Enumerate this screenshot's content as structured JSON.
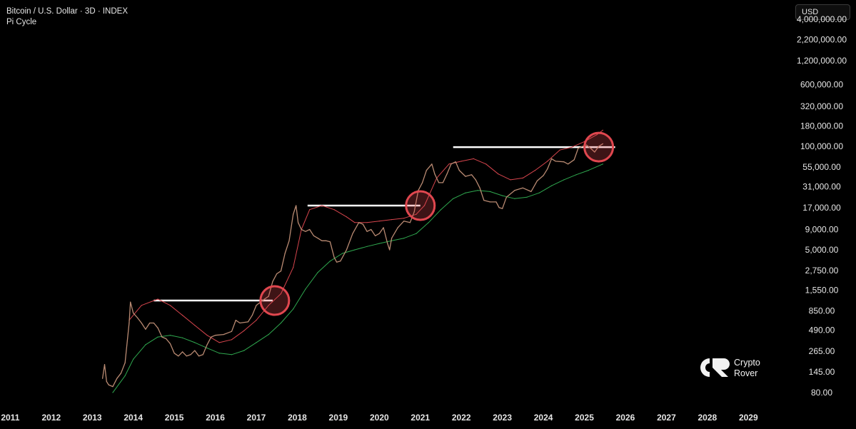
{
  "header": {
    "title": "Bitcoin / U.S. Dollar · 3D · INDEX",
    "indicator": "Pi Cycle"
  },
  "currency_button": "USD",
  "watermark": {
    "line1": "Crypto",
    "line2": "Rover"
  },
  "colors": {
    "background": "#000000",
    "price": "#b98a72",
    "upper_band": "#d6454d",
    "lower_band": "#2fa84f",
    "highlight_circle": "#e0474f",
    "level_line": "#ffffff"
  },
  "chart_data": {
    "type": "line",
    "title": "Bitcoin / U.S. Dollar · 3D · INDEX",
    "indicator": "Pi Cycle",
    "y_scale": "log",
    "y_ticks": [
      80,
      145,
      265,
      490,
      850,
      1550,
      2750,
      5000,
      9000,
      17000,
      31000,
      55000,
      100000,
      180000,
      320000,
      600000,
      1200000,
      2200000,
      4000000
    ],
    "y_tick_labels": [
      "80.00",
      "145.00",
      "265.00",
      "490.00",
      "850.00",
      "1,550.00",
      "2,750.00",
      "5,000.00",
      "9,000.00",
      "17,000.00",
      "31,000.00",
      "55,000.00",
      "100,000.00",
      "180,000.00",
      "320,000.00",
      "600,000.00",
      "1,200,000.00",
      "2,200,000.00",
      "4,000,000.00"
    ],
    "x_ticks": [
      "2011",
      "2012",
      "2013",
      "2014",
      "2015",
      "2016",
      "2017",
      "2018",
      "2019",
      "2020",
      "2021",
      "2022",
      "2023",
      "2024",
      "2025",
      "2026",
      "2027",
      "2028",
      "2029"
    ],
    "xlim": [
      2010.75,
      2029.9
    ],
    "ylim": [
      55,
      4600000
    ],
    "series": [
      {
        "key": "price",
        "x": [
          2013.25,
          2013.3,
          2013.35,
          2013.4,
          2013.5,
          2013.6,
          2013.7,
          2013.8,
          2013.9,
          2013.93,
          2014.0,
          2014.1,
          2014.2,
          2014.3,
          2014.4,
          2014.5,
          2014.6,
          2014.7,
          2014.8,
          2014.9,
          2015.0,
          2015.1,
          2015.2,
          2015.3,
          2015.4,
          2015.5,
          2015.6,
          2015.7,
          2015.8,
          2015.9,
          2016.0,
          2016.2,
          2016.4,
          2016.5,
          2016.6,
          2016.8,
          2016.9,
          2017.0,
          2017.1,
          2017.2,
          2017.3,
          2017.4,
          2017.5,
          2017.6,
          2017.7,
          2017.8,
          2017.9,
          2017.97,
          2018.02,
          2018.1,
          2018.2,
          2018.3,
          2018.4,
          2018.5,
          2018.6,
          2018.7,
          2018.8,
          2018.9,
          2018.96,
          2019.05,
          2019.2,
          2019.35,
          2019.5,
          2019.6,
          2019.7,
          2019.8,
          2019.9,
          2020.0,
          2020.1,
          2020.2,
          2020.25,
          2020.3,
          2020.45,
          2020.6,
          2020.75,
          2020.85,
          2020.95,
          2021.05,
          2021.15,
          2021.28,
          2021.35,
          2021.45,
          2021.55,
          2021.65,
          2021.75,
          2021.86,
          2021.95,
          2022.1,
          2022.25,
          2022.35,
          2022.45,
          2022.55,
          2022.7,
          2022.85,
          2022.92,
          2023.0,
          2023.1,
          2023.3,
          2023.5,
          2023.7,
          2023.85,
          2024.0,
          2024.1,
          2024.2,
          2024.3,
          2024.5,
          2024.6,
          2024.75,
          2024.85,
          2024.95,
          2025.05,
          2025.15,
          2025.25,
          2025.35,
          2025.45
        ],
        "y": [
          120,
          180,
          110,
          100,
          95,
          120,
          140,
          190,
          600,
          1100,
          800,
          700,
          600,
          500,
          600,
          600,
          520,
          400,
          380,
          330,
          250,
          230,
          260,
          230,
          240,
          270,
          230,
          240,
          320,
          400,
          420,
          430,
          470,
          650,
          600,
          620,
          750,
          1000,
          1100,
          1200,
          1300,
          2000,
          2500,
          2700,
          4500,
          6500,
          14000,
          18000,
          11000,
          9000,
          8500,
          9000,
          7500,
          7000,
          6500,
          6500,
          6300,
          4000,
          3500,
          3600,
          5000,
          8000,
          11000,
          10500,
          8500,
          9000,
          7500,
          8000,
          9500,
          6000,
          5000,
          7000,
          9500,
          11500,
          11000,
          15000,
          28000,
          35000,
          50000,
          60000,
          45000,
          35000,
          35000,
          45000,
          60000,
          64000,
          50000,
          42000,
          44000,
          38000,
          30000,
          21000,
          20000,
          20000,
          17000,
          16500,
          23000,
          28000,
          30000,
          27000,
          37000,
          43000,
          52000,
          70000,
          65000,
          64000,
          60000,
          68000,
          95000,
          100000,
          104000,
          95000,
          85000,
          100000,
          108000
        ]
      },
      {
        "key": "upper_band",
        "x": [
          2013.9,
          2014.2,
          2014.6,
          2014.9,
          2015.2,
          2015.5,
          2015.8,
          2016.1,
          2016.4,
          2016.7,
          2017.0,
          2017.3,
          2017.6,
          2017.9,
          2018.1,
          2018.3,
          2018.6,
          2018.9,
          2019.2,
          2019.4,
          2019.7,
          2020.0,
          2020.3,
          2020.6,
          2020.9,
          2021.1,
          2021.4,
          2021.7,
          2022.0,
          2022.3,
          2022.6,
          2022.9,
          2023.2,
          2023.5,
          2023.8,
          2024.1,
          2024.4,
          2024.7,
          2025.0,
          2025.3,
          2025.45
        ],
        "y": [
          650,
          1000,
          1200,
          1000,
          750,
          560,
          420,
          340,
          370,
          480,
          650,
          1000,
          1400,
          3000,
          9000,
          16000,
          18000,
          16000,
          13000,
          11000,
          11000,
          11500,
          12000,
          12500,
          14000,
          18000,
          40000,
          60000,
          65000,
          70000,
          60000,
          45000,
          38000,
          40000,
          50000,
          65000,
          90000,
          98000,
          115000,
          140000,
          160000
        ]
      },
      {
        "key": "lower_band",
        "x": [
          2013.5,
          2013.8,
          2014.0,
          2014.3,
          2014.6,
          2014.9,
          2015.2,
          2015.5,
          2015.8,
          2016.1,
          2016.4,
          2016.7,
          2017.0,
          2017.3,
          2017.6,
          2017.9,
          2018.2,
          2018.5,
          2018.8,
          2019.1,
          2019.4,
          2019.7,
          2020.0,
          2020.3,
          2020.6,
          2020.9,
          2021.2,
          2021.5,
          2021.8,
          2022.1,
          2022.4,
          2022.7,
          2023.0,
          2023.3,
          2023.6,
          2023.9,
          2024.2,
          2024.5,
          2024.8,
          2025.1,
          2025.45
        ],
        "y": [
          80,
          130,
          210,
          320,
          400,
          420,
          390,
          340,
          290,
          250,
          240,
          270,
          340,
          430,
          600,
          900,
          1600,
          2600,
          3600,
          4500,
          5000,
          5500,
          6000,
          6500,
          7000,
          8000,
          11000,
          16000,
          22000,
          26000,
          28000,
          27000,
          24000,
          22000,
          23000,
          26000,
          32000,
          38000,
          44000,
          50000,
          60000
        ]
      }
    ],
    "horizontal_levels": [
      {
        "x_start": 2014.5,
        "x_end": 2017.4,
        "y": 1150
      },
      {
        "x_start": 2018.25,
        "x_end": 2021.0,
        "y": 18000
      },
      {
        "x_start": 2021.8,
        "x_end": 2025.75,
        "y": 98000
      }
    ],
    "highlight_circles": [
      {
        "x": 2017.45,
        "y": 1150
      },
      {
        "x": 2021.0,
        "y": 18000
      },
      {
        "x": 2025.35,
        "y": 98000
      }
    ]
  }
}
